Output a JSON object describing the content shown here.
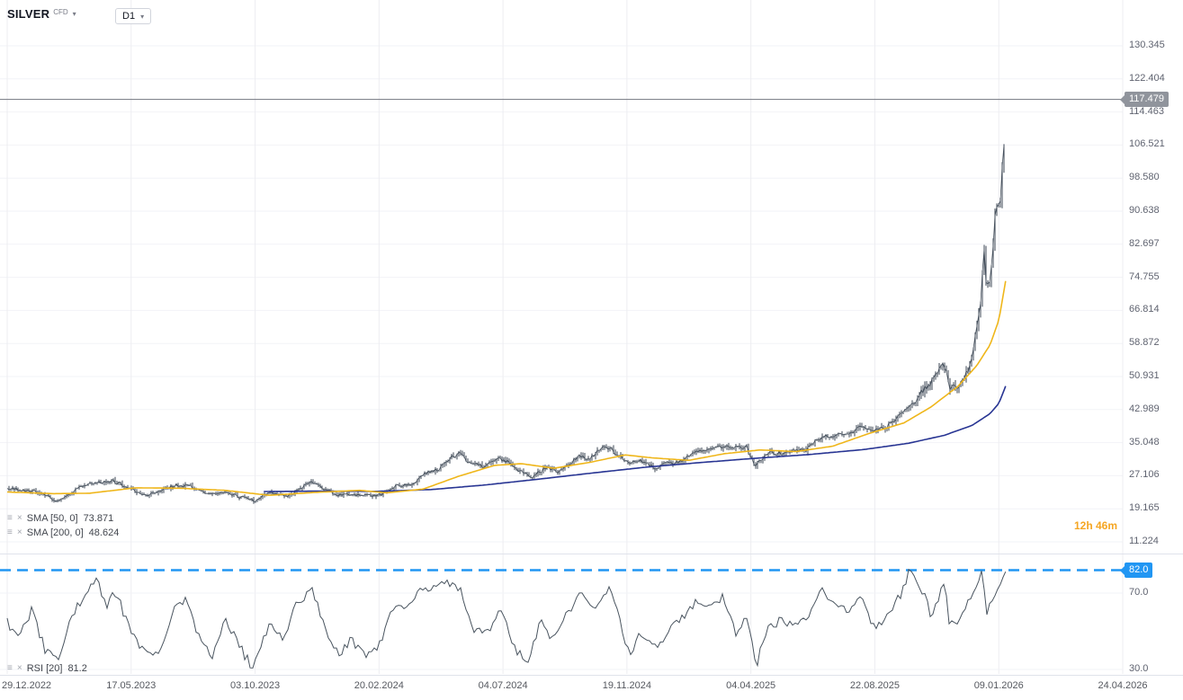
{
  "header": {
    "symbol": "SILVER",
    "market_type": "CFD",
    "timeframe": "D1"
  },
  "icons": {
    "chevron_down": "▾",
    "indicator_settings": "≡",
    "indicator_remove": "×"
  },
  "legend": {
    "sma50_label": "SMA [50, 0]",
    "sma50_value": "73.871",
    "sma200_label": "SMA [200, 0]",
    "sma200_value": "48.624",
    "rsi_label": "RSI [20]",
    "rsi_value": "81.2"
  },
  "countdown": "12h 46m",
  "colors": {
    "candle": "#3b4653",
    "sma50": "#efb61a",
    "sma200": "#283593",
    "rsi_line": "#49545f",
    "threshold_blue": "#2196f3",
    "current_price_bg": "#90949c",
    "countdown": "#f5a623"
  },
  "price_axis": {
    "tick_labels": [
      "130.345",
      "122.404",
      "114.463",
      "106.521",
      "98.580",
      "90.638",
      "82.697",
      "74.755",
      "66.814",
      "58.872",
      "50.931",
      "42.989",
      "35.048",
      "27.106",
      "19.165",
      "11.224"
    ],
    "current_price": "117.479"
  },
  "rsi_axis": {
    "tick_labels": [
      "70.0",
      "30.0"
    ],
    "threshold": "82.0"
  },
  "time_axis": {
    "labels": [
      "29.12.2022",
      "17.05.2023",
      "03.10.2023",
      "20.02.2024",
      "04.07.2024",
      "19.11.2024",
      "04.04.2025",
      "22.08.2025",
      "09.01.2026",
      "24.04.2026"
    ]
  },
  "chart_data": {
    "type": "candlestick",
    "title": "SILVER CFD, D1",
    "x_range": [
      "29.12.2022",
      "24.04.2026"
    ],
    "x_tick_labels": [
      "29.12.2022",
      "17.05.2023",
      "03.10.2023",
      "20.02.2024",
      "04.07.2024",
      "19.11.2024",
      "04.04.2025",
      "22.08.2025",
      "09.01.2026",
      "24.04.2026"
    ],
    "ylim": [
      11.224,
      130.345
    ],
    "y_ticks": [
      130.345,
      122.404,
      114.463,
      106.521,
      98.58,
      90.638,
      82.697,
      74.755,
      66.814,
      58.872,
      50.931,
      42.989,
      35.048,
      27.106,
      19.165,
      11.224
    ],
    "current_price": 117.479,
    "data_end_fraction": 0.895,
    "close_anchors": [
      [
        0,
        24.0
      ],
      [
        0.018,
        23.6
      ],
      [
        0.034,
        22.5
      ],
      [
        0.046,
        20.9
      ],
      [
        0.062,
        23.9
      ],
      [
        0.074,
        25.0
      ],
      [
        0.094,
        26.0
      ],
      [
        0.111,
        23.8
      ],
      [
        0.127,
        22.4
      ],
      [
        0.151,
        24.9
      ],
      [
        0.167,
        24.3
      ],
      [
        0.179,
        22.6
      ],
      [
        0.195,
        23.4
      ],
      [
        0.207,
        22.1
      ],
      [
        0.223,
        21.0
      ],
      [
        0.235,
        23.2
      ],
      [
        0.252,
        22.4
      ],
      [
        0.272,
        25.4
      ],
      [
        0.284,
        24.0
      ],
      [
        0.298,
        22.4
      ],
      [
        0.316,
        22.6
      ],
      [
        0.333,
        22.3
      ],
      [
        0.348,
        24.6
      ],
      [
        0.363,
        25.1
      ],
      [
        0.374,
        27.6
      ],
      [
        0.386,
        28.6
      ],
      [
        0.398,
        31.8
      ],
      [
        0.406,
        32.3
      ],
      [
        0.415,
        30.2
      ],
      [
        0.427,
        29.4
      ],
      [
        0.439,
        31.2
      ],
      [
        0.449,
        30.4
      ],
      [
        0.46,
        28.0
      ],
      [
        0.471,
        26.8
      ],
      [
        0.483,
        29.1
      ],
      [
        0.495,
        27.9
      ],
      [
        0.511,
        31.6
      ],
      [
        0.523,
        31.3
      ],
      [
        0.535,
        34.5
      ],
      [
        0.547,
        32.4
      ],
      [
        0.557,
        30.3
      ],
      [
        0.568,
        30.6
      ],
      [
        0.58,
        29.0
      ],
      [
        0.592,
        30.2
      ],
      [
        0.604,
        30.4
      ],
      [
        0.616,
        32.6
      ],
      [
        0.632,
        33.4
      ],
      [
        0.644,
        34.3
      ],
      [
        0.663,
        34.0
      ],
      [
        0.67,
        29.3
      ],
      [
        0.681,
        32.4
      ],
      [
        0.693,
        32.6
      ],
      [
        0.705,
        33.0
      ],
      [
        0.717,
        33.3
      ],
      [
        0.729,
        36.2
      ],
      [
        0.741,
        36.6
      ],
      [
        0.753,
        36.9
      ],
      [
        0.765,
        39.1
      ],
      [
        0.773,
        38.3
      ],
      [
        0.779,
        38.1
      ],
      [
        0.788,
        38.6
      ],
      [
        0.796,
        40.8
      ],
      [
        0.804,
        42.5
      ],
      [
        0.812,
        44.5
      ],
      [
        0.819,
        47.2
      ],
      [
        0.826,
        48.6
      ],
      [
        0.834,
        52.0
      ],
      [
        0.84,
        54.2
      ],
      [
        0.844,
        48.6
      ],
      [
        0.85,
        48.2
      ],
      [
        0.856,
        50.0
      ],
      [
        0.862,
        53.0
      ],
      [
        0.866,
        57.5
      ],
      [
        0.869,
        62.0
      ],
      [
        0.872,
        68.0
      ],
      [
        0.874,
        74.0
      ],
      [
        0.876,
        82.5
      ],
      [
        0.878,
        71.5
      ],
      [
        0.881,
        75.0
      ],
      [
        0.884,
        84.0
      ],
      [
        0.886,
        90.0
      ],
      [
        0.889,
        94.0
      ],
      [
        0.89,
        91.0
      ],
      [
        0.892,
        101.0
      ],
      [
        0.894,
        110.0
      ],
      [
        0.895,
        117.479
      ]
    ],
    "sma50": {
      "period": 50,
      "last": 73.871,
      "points": [
        [
          0,
          23.2
        ],
        [
          0.042,
          22.8
        ],
        [
          0.074,
          22.9
        ],
        [
          0.115,
          24.2
        ],
        [
          0.155,
          24.1
        ],
        [
          0.195,
          23.6
        ],
        [
          0.235,
          22.4
        ],
        [
          0.276,
          23.1
        ],
        [
          0.316,
          23.6
        ],
        [
          0.34,
          23.0
        ],
        [
          0.373,
          23.9
        ],
        [
          0.405,
          27.0
        ],
        [
          0.437,
          29.6
        ],
        [
          0.461,
          30.0
        ],
        [
          0.49,
          28.9
        ],
        [
          0.522,
          30.3
        ],
        [
          0.554,
          32.1
        ],
        [
          0.578,
          31.4
        ],
        [
          0.611,
          30.8
        ],
        [
          0.643,
          32.4
        ],
        [
          0.675,
          33.3
        ],
        [
          0.707,
          32.9
        ],
        [
          0.74,
          34.2
        ],
        [
          0.772,
          37.2
        ],
        [
          0.804,
          39.8
        ],
        [
          0.828,
          43.6
        ],
        [
          0.852,
          48.5
        ],
        [
          0.869,
          53.5
        ],
        [
          0.881,
          58.5
        ],
        [
          0.889,
          64.5
        ],
        [
          0.895,
          73.871
        ]
      ]
    },
    "sma200": {
      "period": 200,
      "last": 48.624,
      "points": [
        [
          0.23,
          23.3
        ],
        [
          0.276,
          23.4
        ],
        [
          0.332,
          23.35
        ],
        [
          0.381,
          23.8
        ],
        [
          0.429,
          24.9
        ],
        [
          0.477,
          26.3
        ],
        [
          0.526,
          27.8
        ],
        [
          0.574,
          29.2
        ],
        [
          0.623,
          30.3
        ],
        [
          0.671,
          31.3
        ],
        [
          0.719,
          32.2
        ],
        [
          0.768,
          33.4
        ],
        [
          0.808,
          34.9
        ],
        [
          0.84,
          36.8
        ],
        [
          0.865,
          39.2
        ],
        [
          0.881,
          42.0
        ],
        [
          0.889,
          44.5
        ],
        [
          0.895,
          48.624
        ]
      ]
    },
    "rsi": {
      "period": 20,
      "last": 81.2,
      "overbought_line": 82.0,
      "ticks": [
        70,
        30
      ],
      "points": [
        [
          0,
          55
        ],
        [
          0.01,
          45
        ],
        [
          0.022,
          62
        ],
        [
          0.034,
          40
        ],
        [
          0.046,
          34
        ],
        [
          0.058,
          58
        ],
        [
          0.07,
          70
        ],
        [
          0.08,
          77
        ],
        [
          0.089,
          64
        ],
        [
          0.098,
          71
        ],
        [
          0.111,
          48
        ],
        [
          0.124,
          40
        ],
        [
          0.135,
          36
        ],
        [
          0.148,
          60
        ],
        [
          0.16,
          67
        ],
        [
          0.172,
          46
        ],
        [
          0.184,
          38
        ],
        [
          0.196,
          56
        ],
        [
          0.208,
          42
        ],
        [
          0.22,
          31
        ],
        [
          0.235,
          54
        ],
        [
          0.247,
          46
        ],
        [
          0.26,
          66
        ],
        [
          0.273,
          71
        ],
        [
          0.285,
          52
        ],
        [
          0.297,
          38
        ],
        [
          0.309,
          46
        ],
        [
          0.321,
          36
        ],
        [
          0.333,
          43
        ],
        [
          0.345,
          60
        ],
        [
          0.357,
          64
        ],
        [
          0.369,
          71
        ],
        [
          0.381,
          74
        ],
        [
          0.394,
          77
        ],
        [
          0.406,
          72
        ],
        [
          0.418,
          52
        ],
        [
          0.43,
          48
        ],
        [
          0.442,
          63
        ],
        [
          0.454,
          42
        ],
        [
          0.466,
          33
        ],
        [
          0.478,
          56
        ],
        [
          0.49,
          45
        ],
        [
          0.502,
          60
        ],
        [
          0.515,
          69
        ],
        [
          0.527,
          62
        ],
        [
          0.539,
          74
        ],
        [
          0.551,
          52
        ],
        [
          0.557,
          38
        ],
        [
          0.569,
          50
        ],
        [
          0.581,
          41
        ],
        [
          0.594,
          51
        ],
        [
          0.606,
          57
        ],
        [
          0.618,
          67
        ],
        [
          0.63,
          63
        ],
        [
          0.642,
          69
        ],
        [
          0.654,
          48
        ],
        [
          0.664,
          58
        ],
        [
          0.671,
          30
        ],
        [
          0.681,
          52
        ],
        [
          0.694,
          56
        ],
        [
          0.706,
          52
        ],
        [
          0.718,
          58
        ],
        [
          0.73,
          73
        ],
        [
          0.742,
          63
        ],
        [
          0.754,
          60
        ],
        [
          0.766,
          71
        ],
        [
          0.774,
          55
        ],
        [
          0.781,
          52
        ],
        [
          0.79,
          60
        ],
        [
          0.8,
          68
        ],
        [
          0.81,
          83
        ],
        [
          0.821,
          70
        ],
        [
          0.829,
          57
        ],
        [
          0.84,
          77
        ],
        [
          0.845,
          52
        ],
        [
          0.852,
          56
        ],
        [
          0.858,
          63
        ],
        [
          0.866,
          71
        ],
        [
          0.874,
          80
        ],
        [
          0.878,
          60
        ],
        [
          0.885,
          70
        ],
        [
          0.89,
          76
        ],
        [
          0.895,
          81.2
        ]
      ]
    }
  }
}
